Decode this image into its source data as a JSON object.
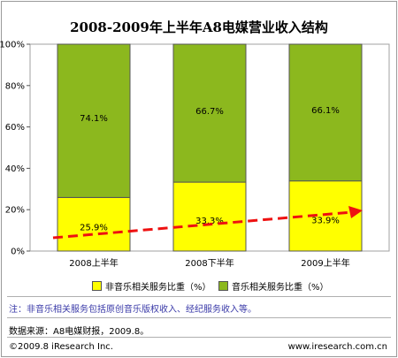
{
  "chart_data": {
    "type": "bar",
    "stacked": true,
    "title": "2008-2009年上半年A8电媒营业收入结构",
    "categories": [
      "2008上半年",
      "2008下半年",
      "2009上半年"
    ],
    "series": [
      {
        "name": "非音乐相关服务比重（%）",
        "values": [
          25.9,
          33.3,
          33.9
        ],
        "color": "#ffff00"
      },
      {
        "name": "音乐相关服务比重（%）",
        "values": [
          74.1,
          66.7,
          66.1
        ],
        "color": "#8cb81e"
      }
    ],
    "data_labels": [
      [
        "25.9%",
        "33.3%",
        "33.9%"
      ],
      [
        "74.1%",
        "66.7%",
        "66.1%"
      ]
    ],
    "y_ticks": [
      "0%",
      "20%",
      "40%",
      "60%",
      "80%",
      "100%"
    ],
    "ylim": [
      0,
      100
    ],
    "grid": false,
    "legend_position": "bottom",
    "annotation": "red dashed trend arrow rising across the non-music series"
  },
  "footer": {
    "note": "注：非音乐相关服务包括原创音乐版权收入、经纪服务收入等。",
    "source": "数据来源：A8电媒财报，2009.8。",
    "copyright": "©2009.8 iResearch Inc.",
    "website": "www.iresearch.com.cn"
  }
}
